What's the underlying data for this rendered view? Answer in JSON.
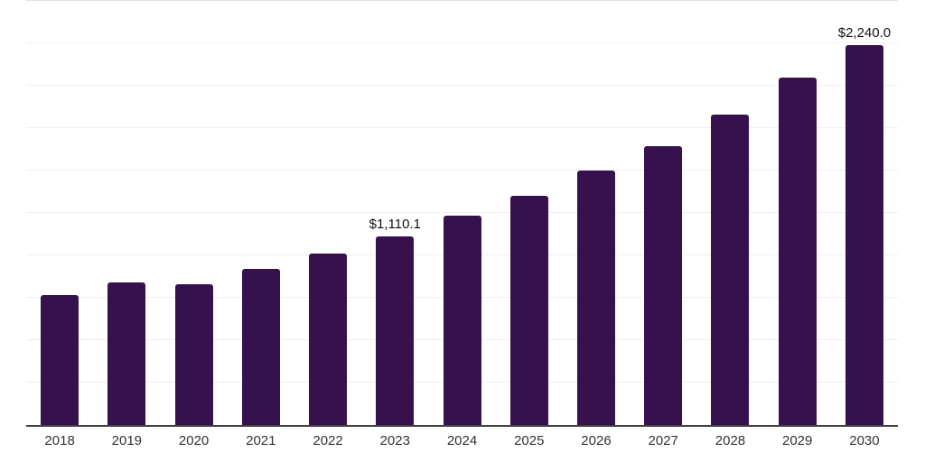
{
  "chart_data": {
    "type": "bar",
    "title": "",
    "xlabel": "",
    "ylabel": "",
    "categories": [
      "2018",
      "2019",
      "2020",
      "2021",
      "2022",
      "2023",
      "2024",
      "2025",
      "2026",
      "2027",
      "2028",
      "2029",
      "2030"
    ],
    "values": [
      765,
      839,
      830,
      920,
      1010,
      1110.1,
      1232,
      1353,
      1498,
      1644,
      1830,
      2048,
      2240
    ],
    "data_labels": {
      "2023": "$1,110.1",
      "2030": "$2,240.0"
    },
    "ylim": [
      0,
      2500
    ],
    "gridline_step": 250,
    "grid": true,
    "legend": false,
    "colors": {
      "bar": "#36114D",
      "axis": "#404040",
      "gridline": "#efefef",
      "top_gridline": "#e2e2e2",
      "tick_label": "#333333",
      "data_label": "#111111",
      "background": "#ffffff"
    }
  }
}
